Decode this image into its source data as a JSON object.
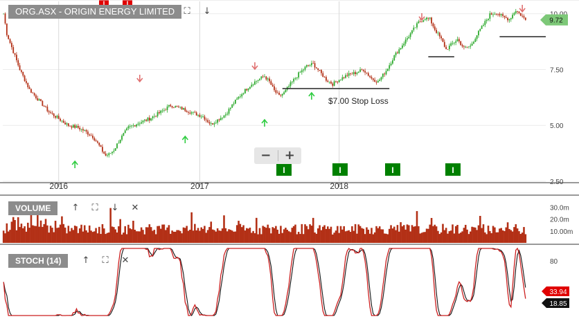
{
  "chart_data": [
    {
      "type": "candlestick",
      "title": "ORG.ASX - ORIGIN ENERGY LIMITED",
      "x_tick_labels": [
        "2016",
        "2017",
        "2018"
      ],
      "y_ticks": [
        "10.00",
        "7.50",
        "5.00",
        "2.50"
      ],
      "ylim": [
        2.5,
        10.3
      ],
      "grid": true,
      "last_price": "9.72",
      "price_path": [
        [
          0,
          10.0
        ],
        [
          2,
          9.1
        ],
        [
          6,
          8.3
        ],
        [
          10,
          7.5
        ],
        [
          16,
          6.6
        ],
        [
          22,
          6.1
        ],
        [
          28,
          5.6
        ],
        [
          34,
          5.3
        ],
        [
          40,
          5.0
        ],
        [
          46,
          4.9
        ],
        [
          50,
          4.75
        ],
        [
          55,
          4.5
        ],
        [
          58,
          4.2
        ],
        [
          61,
          3.85
        ],
        [
          63,
          3.65
        ],
        [
          65,
          3.7
        ],
        [
          68,
          3.9
        ],
        [
          72,
          4.4
        ],
        [
          77,
          4.9
        ],
        [
          83,
          5.1
        ],
        [
          90,
          5.3
        ],
        [
          97,
          5.6
        ],
        [
          103,
          5.9
        ],
        [
          110,
          5.75
        ],
        [
          117,
          5.55
        ],
        [
          123,
          5.4
        ],
        [
          128,
          5.05
        ],
        [
          132,
          5.25
        ],
        [
          137,
          5.5
        ],
        [
          142,
          6.0
        ],
        [
          148,
          6.5
        ],
        [
          153,
          6.85
        ],
        [
          157,
          7.05
        ],
        [
          161,
          7.2
        ],
        [
          164,
          6.95
        ],
        [
          167,
          6.55
        ],
        [
          170,
          6.3
        ],
        [
          173,
          6.45
        ],
        [
          177,
          6.85
        ],
        [
          182,
          7.3
        ],
        [
          187,
          7.65
        ],
        [
          191,
          7.75
        ],
        [
          195,
          7.4
        ],
        [
          199,
          7.05
        ],
        [
          203,
          6.85
        ],
        [
          207,
          7.05
        ],
        [
          212,
          7.25
        ],
        [
          217,
          7.35
        ],
        [
          222,
          7.5
        ],
        [
          227,
          7.1
        ],
        [
          231,
          6.95
        ],
        [
          236,
          7.45
        ],
        [
          241,
          8.1
        ],
        [
          246,
          8.6
        ],
        [
          251,
          9.1
        ],
        [
          256,
          9.6
        ],
        [
          260,
          9.8
        ],
        [
          263,
          9.75
        ],
        [
          266,
          9.3
        ],
        [
          270,
          8.85
        ],
        [
          273,
          8.4
        ],
        [
          276,
          8.6
        ],
        [
          280,
          8.85
        ],
        [
          284,
          8.45
        ],
        [
          288,
          8.55
        ],
        [
          292,
          9.05
        ],
        [
          296,
          9.5
        ],
        [
          300,
          9.95
        ],
        [
          304,
          10.05
        ],
        [
          308,
          9.85
        ],
        [
          312,
          9.75
        ],
        [
          316,
          10.15
        ],
        [
          319,
          9.95
        ],
        [
          322,
          9.72
        ]
      ]
    },
    {
      "type": "bar",
      "title": "VOLUME",
      "y_ticks": [
        "30.0m",
        "20.0m",
        "10.00m"
      ],
      "ylim": [
        0,
        36
      ],
      "seed": 7,
      "base": 7,
      "spread": 9
    },
    {
      "type": "line",
      "title": "STOCH (14)",
      "y_ticks": [
        "80",
        "20"
      ],
      "ylim": [
        0,
        100
      ],
      "period": 14,
      "k_value": "33.94",
      "d_value": "18.85",
      "colors": {
        "k": "#cc1f1f",
        "d": "#111111"
      }
    }
  ],
  "annotations": {
    "stop_loss_label": "$7.00 Stop Loss"
  },
  "colors": {
    "up": "#2eaa2e",
    "down": "#b33016",
    "volume": "#b33016",
    "arrow_up": "#2ecc40",
    "arrow_down": "#e07070",
    "event_green": "#008000",
    "event_red": "#e00000",
    "price_tag": "#7dc878"
  },
  "icons": {
    "expand": "expand-icon",
    "down": "arrow-down-icon",
    "up": "arrow-up-icon",
    "close": "close-icon"
  },
  "zoom": {
    "minus": "−",
    "plus": "+"
  },
  "event_markers": {
    "green_label": "I",
    "red_label": "I"
  }
}
